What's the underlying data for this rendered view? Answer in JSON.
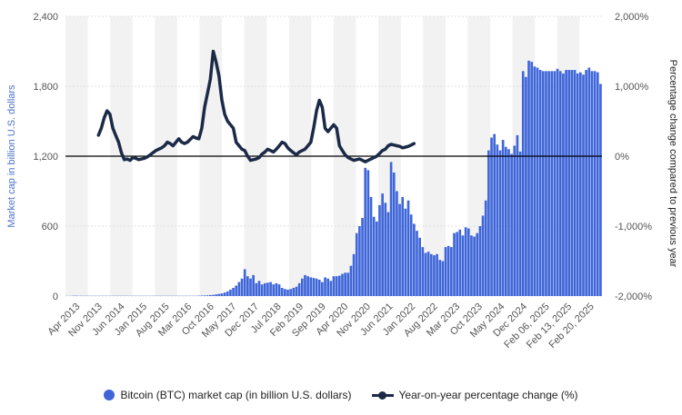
{
  "chart_data": {
    "type": "bar+line",
    "left_axis": {
      "label": "Market cap in billion U.S. dollars",
      "ylim": [
        0,
        2400
      ],
      "ticks": [
        "0",
        "600",
        "1,200",
        "1,800",
        "2,400"
      ],
      "tick_values": [
        0,
        600,
        1200,
        1800,
        2400
      ]
    },
    "right_axis": {
      "label": "Percentage change compared to previous year",
      "ylim": [
        -2000,
        2000
      ],
      "ticks": [
        "-2,000%",
        "-1,000%",
        "0%",
        "1,000%",
        "2,000%"
      ],
      "tick_values": [
        -2000,
        -1000,
        0,
        1000,
        2000
      ]
    },
    "x_tick_labels": [
      "Apr 2013",
      "Nov 2013",
      "Jun 2014",
      "Jan 2015",
      "Aug 2015",
      "Mar 2016",
      "Oct 2016",
      "May 2017",
      "Dec 2017",
      "Jul 2018",
      "Feb 2019",
      "Sep 2019",
      "Apr 2020",
      "Nov 2020",
      "Jun 2021",
      "Jan 2022",
      "Aug 2022",
      "Mar 2023",
      "Oct 2023",
      "May 2024",
      "Dec 2024",
      "Feb 06, 2025",
      "Feb 13, 2025",
      "Feb 20, 2025"
    ],
    "series": [
      {
        "name": "Bitcoin (BTC) market cap (in billion U.S. dollars)",
        "type": "bar",
        "axis": "left",
        "color": "#3f66d9",
        "values": [
          1,
          1,
          2,
          3,
          2,
          2,
          2,
          2,
          2,
          2,
          2,
          2,
          2,
          2,
          2,
          2,
          2,
          2,
          2,
          2,
          2,
          2,
          2,
          2,
          2,
          2,
          2,
          2,
          2,
          2,
          2,
          2,
          2,
          2,
          2,
          2,
          2,
          2,
          2,
          2,
          2,
          2,
          2,
          2,
          2,
          2,
          3,
          4,
          5,
          6,
          8,
          10,
          14,
          18,
          22,
          30,
          40,
          55,
          70,
          90,
          120,
          150,
          230,
          170,
          150,
          180,
          110,
          130,
          100,
          110,
          115,
          120,
          100,
          110,
          100,
          70,
          60,
          55,
          60,
          70,
          80,
          110,
          150,
          180,
          170,
          160,
          155,
          150,
          140,
          120,
          160,
          150,
          130,
          170,
          170,
          175,
          190,
          200,
          200,
          260,
          360,
          540,
          600,
          670,
          1100,
          1080,
          850,
          680,
          640,
          780,
          880,
          800,
          720,
          1150,
          1060,
          900,
          790,
          850,
          750,
          820,
          700,
          620,
          560,
          500,
          420,
          370,
          380,
          360,
          350,
          360,
          310,
          300,
          420,
          430,
          420,
          540,
          550,
          570,
          520,
          590,
          580,
          520,
          510,
          540,
          600,
          690,
          820,
          1250,
          1360,
          1390,
          1300,
          1250,
          1340,
          1280,
          1260,
          1220,
          1290,
          1380,
          1240,
          1930,
          1880,
          2020,
          2010,
          1970,
          1960,
          1940,
          1930,
          1930,
          1930,
          1930,
          1930,
          1950,
          1930,
          1910,
          1940,
          1940,
          1940,
          1940,
          1910,
          1920,
          1900,
          1940,
          1960,
          1930,
          1930,
          1920,
          1820
        ]
      },
      {
        "name": "Year-on-year percentage change (%)",
        "type": "line",
        "axis": "right",
        "color": "#1b2a47",
        "x_start_index": 11,
        "values": [
          300,
          400,
          550,
          650,
          600,
          400,
          300,
          200,
          50,
          -50,
          -40,
          -60,
          -20,
          -30,
          -50,
          -40,
          -30,
          -10,
          20,
          50,
          80,
          100,
          120,
          150,
          200,
          180,
          150,
          200,
          250,
          200,
          180,
          200,
          240,
          280,
          260,
          250,
          400,
          700,
          900,
          1100,
          1500,
          1350,
          1150,
          800,
          600,
          500,
          450,
          400,
          200,
          150,
          100,
          80,
          0,
          -60,
          -50,
          -40,
          -20,
          30,
          60,
          100,
          80,
          60,
          100,
          150,
          200,
          180,
          120,
          80,
          50,
          20,
          60,
          80,
          100,
          150,
          200,
          400,
          650,
          800,
          700,
          400,
          350,
          400,
          450,
          400,
          150,
          80,
          20,
          -20,
          -40,
          -60,
          -50,
          -40,
          -60,
          -80,
          -60,
          -40,
          -20,
          0,
          40,
          80,
          100,
          150,
          170,
          160,
          150,
          140,
          120,
          130,
          140,
          160,
          180
        ]
      }
    ],
    "legend_position": "bottom-center",
    "grid": true,
    "zero_line_right": true
  },
  "legend": {
    "bar_label": "Bitcoin (BTC) market cap (in billion U.S. dollars)",
    "line_label": "Year-on-year percentage change (%)"
  }
}
